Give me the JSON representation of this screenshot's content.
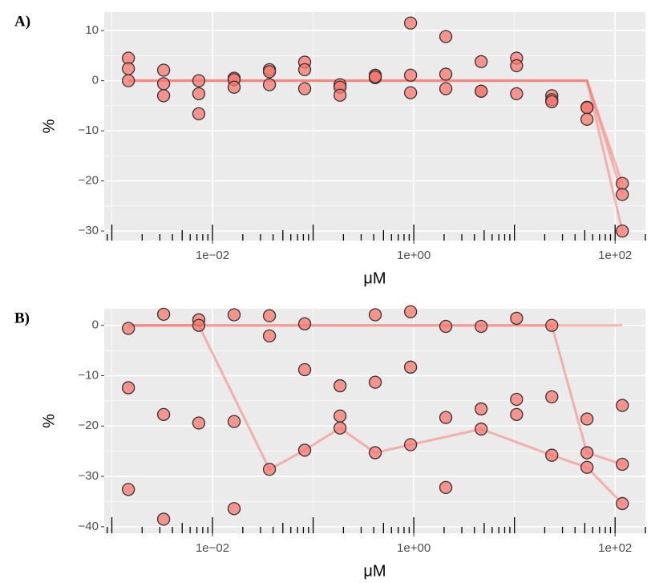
{
  "chart_data": [
    {
      "type": "scatter",
      "panel_label": "A)",
      "xlabel": "μM",
      "ylabel": "%",
      "log_x": true,
      "logticks": true,
      "grid": true,
      "minor_grid": true,
      "point_color": "#f8766d",
      "line_color": "#f8766d",
      "xlim": [
        0.00084,
        200
      ],
      "ylim": [
        -31.9,
        13.7
      ],
      "xticks": [
        {
          "value": 0.01,
          "label": "1e−02"
        },
        {
          "value": 1,
          "label": "1e+00"
        },
        {
          "value": 100,
          "label": "1e+02"
        }
      ],
      "yticks": [
        {
          "value": -30,
          "label": "−30"
        },
        {
          "value": -20,
          "label": "−20"
        },
        {
          "value": -10,
          "label": "−10"
        },
        0,
        10
      ],
      "points": {
        "x": [
          0.00146,
          0.00146,
          0.00146,
          0.00327,
          0.00327,
          0.00327,
          0.00731,
          0.00731,
          0.00731,
          0.0164,
          0.0164,
          0.0164,
          0.0368,
          0.0368,
          0.0368,
          0.0824,
          0.0824,
          0.0824,
          0.185,
          0.185,
          0.185,
          0.414,
          0.414,
          0.414,
          0.929,
          0.929,
          0.929,
          2.08,
          2.08,
          2.08,
          4.67,
          4.67,
          4.67,
          10.5,
          10.5,
          10.5,
          23.5,
          23.5,
          23.5,
          52.6,
          52.6,
          52.6,
          118,
          118,
          118
        ],
        "values": [
          4.5,
          2.4,
          0,
          2.1,
          -0.6,
          -3.0,
          0,
          -2.6,
          -6.6,
          0.5,
          0.2,
          -1.3,
          2.2,
          1.8,
          -0.8,
          3.7,
          2.2,
          -1.6,
          -0.8,
          -1.3,
          -2.9,
          1.1,
          0.6,
          0.8,
          11.5,
          1.1,
          -2.4,
          8.8,
          1.3,
          -1.6,
          3.8,
          -2.1,
          -2.1,
          4.5,
          3.0,
          -2.6,
          -3.0,
          -3.8,
          -4.2,
          -5.3,
          -5.4,
          -7.7,
          -20.5,
          -22.7,
          -30
        ]
      },
      "fits": [
        {
          "x": [
            0.00146,
            52.6,
            118
          ],
          "values": [
            0,
            0,
            -20.5
          ]
        },
        {
          "x": [
            0.00146,
            52.6,
            118
          ],
          "values": [
            0,
            0,
            -22.7
          ]
        },
        {
          "x": [
            0.00146,
            52.6,
            118
          ],
          "values": [
            0,
            0,
            -30
          ]
        }
      ]
    },
    {
      "type": "scatter",
      "panel_label": "B)",
      "xlabel": "μM",
      "ylabel": "%",
      "log_x": true,
      "logticks": true,
      "grid": true,
      "minor_grid": true,
      "point_color": "#f8766d",
      "line_color": "#f8766d",
      "xlim": [
        0.00084,
        200
      ],
      "ylim": [
        -41.3,
        3.3
      ],
      "xticks": [
        {
          "value": 0.01,
          "label": "1e−02"
        },
        {
          "value": 1,
          "label": "1e+00"
        },
        {
          "value": 100,
          "label": "1e+02"
        }
      ],
      "yticks": [
        {
          "value": -40,
          "label": "−40"
        },
        {
          "value": -30,
          "label": "−30"
        },
        {
          "value": -20,
          "label": "−20"
        },
        {
          "value": -10,
          "label": "−10"
        },
        0
      ],
      "points": {
        "x": [
          0.00146,
          0.00146,
          0.00146,
          0.00327,
          0.00327,
          0.00327,
          0.00731,
          0.00731,
          0.00731,
          0.0164,
          0.0164,
          0.0164,
          0.0368,
          0.0368,
          0.0368,
          0.0824,
          0.0824,
          0.0824,
          0.185,
          0.185,
          0.185,
          0.414,
          0.414,
          0.414,
          0.929,
          0.929,
          0.929,
          2.08,
          2.08,
          2.08,
          4.67,
          4.67,
          4.67,
          10.5,
          10.5,
          10.5,
          23.5,
          23.5,
          23.5,
          52.6,
          52.6,
          52.6,
          118,
          118,
          118
        ],
        "values": [
          -0.6,
          -12.4,
          -32.6,
          2.2,
          -17.7,
          -38.5,
          1.1,
          0,
          -19.4,
          2.1,
          -19.1,
          -36.4,
          1.9,
          -2.1,
          -28.6,
          0.3,
          -8.8,
          -24.8,
          -12,
          -18,
          -20.4,
          2.1,
          -11.3,
          -25.3,
          2.7,
          -8.3,
          -23.7,
          -0.2,
          -18.3,
          -32.2,
          -0.2,
          -16.6,
          -20.6,
          1.4,
          -14.7,
          -17.7,
          0,
          -14.2,
          -25.8,
          -18.6,
          -25.3,
          -28.2,
          -15.9,
          -27.6,
          -35.4
        ]
      },
      "fits": [
        {
          "x": [
            0.00146,
            118
          ],
          "values": [
            0,
            0
          ]
        },
        {
          "x": [
            0.00146,
            23.5,
            52.6,
            118
          ],
          "values": [
            0,
            0,
            -25.3,
            -27.6
          ]
        },
        {
          "x": [
            0.00146,
            0.00731,
            0.0368,
            0.0824,
            0.185,
            0.414,
            0.929,
            4.67,
            23.5,
            52.6,
            118
          ],
          "values": [
            0,
            0,
            -28.6,
            -24.8,
            -20.4,
            -25.3,
            -23.7,
            -20.6,
            -25.8,
            -28.2,
            -35.4
          ]
        }
      ]
    }
  ]
}
